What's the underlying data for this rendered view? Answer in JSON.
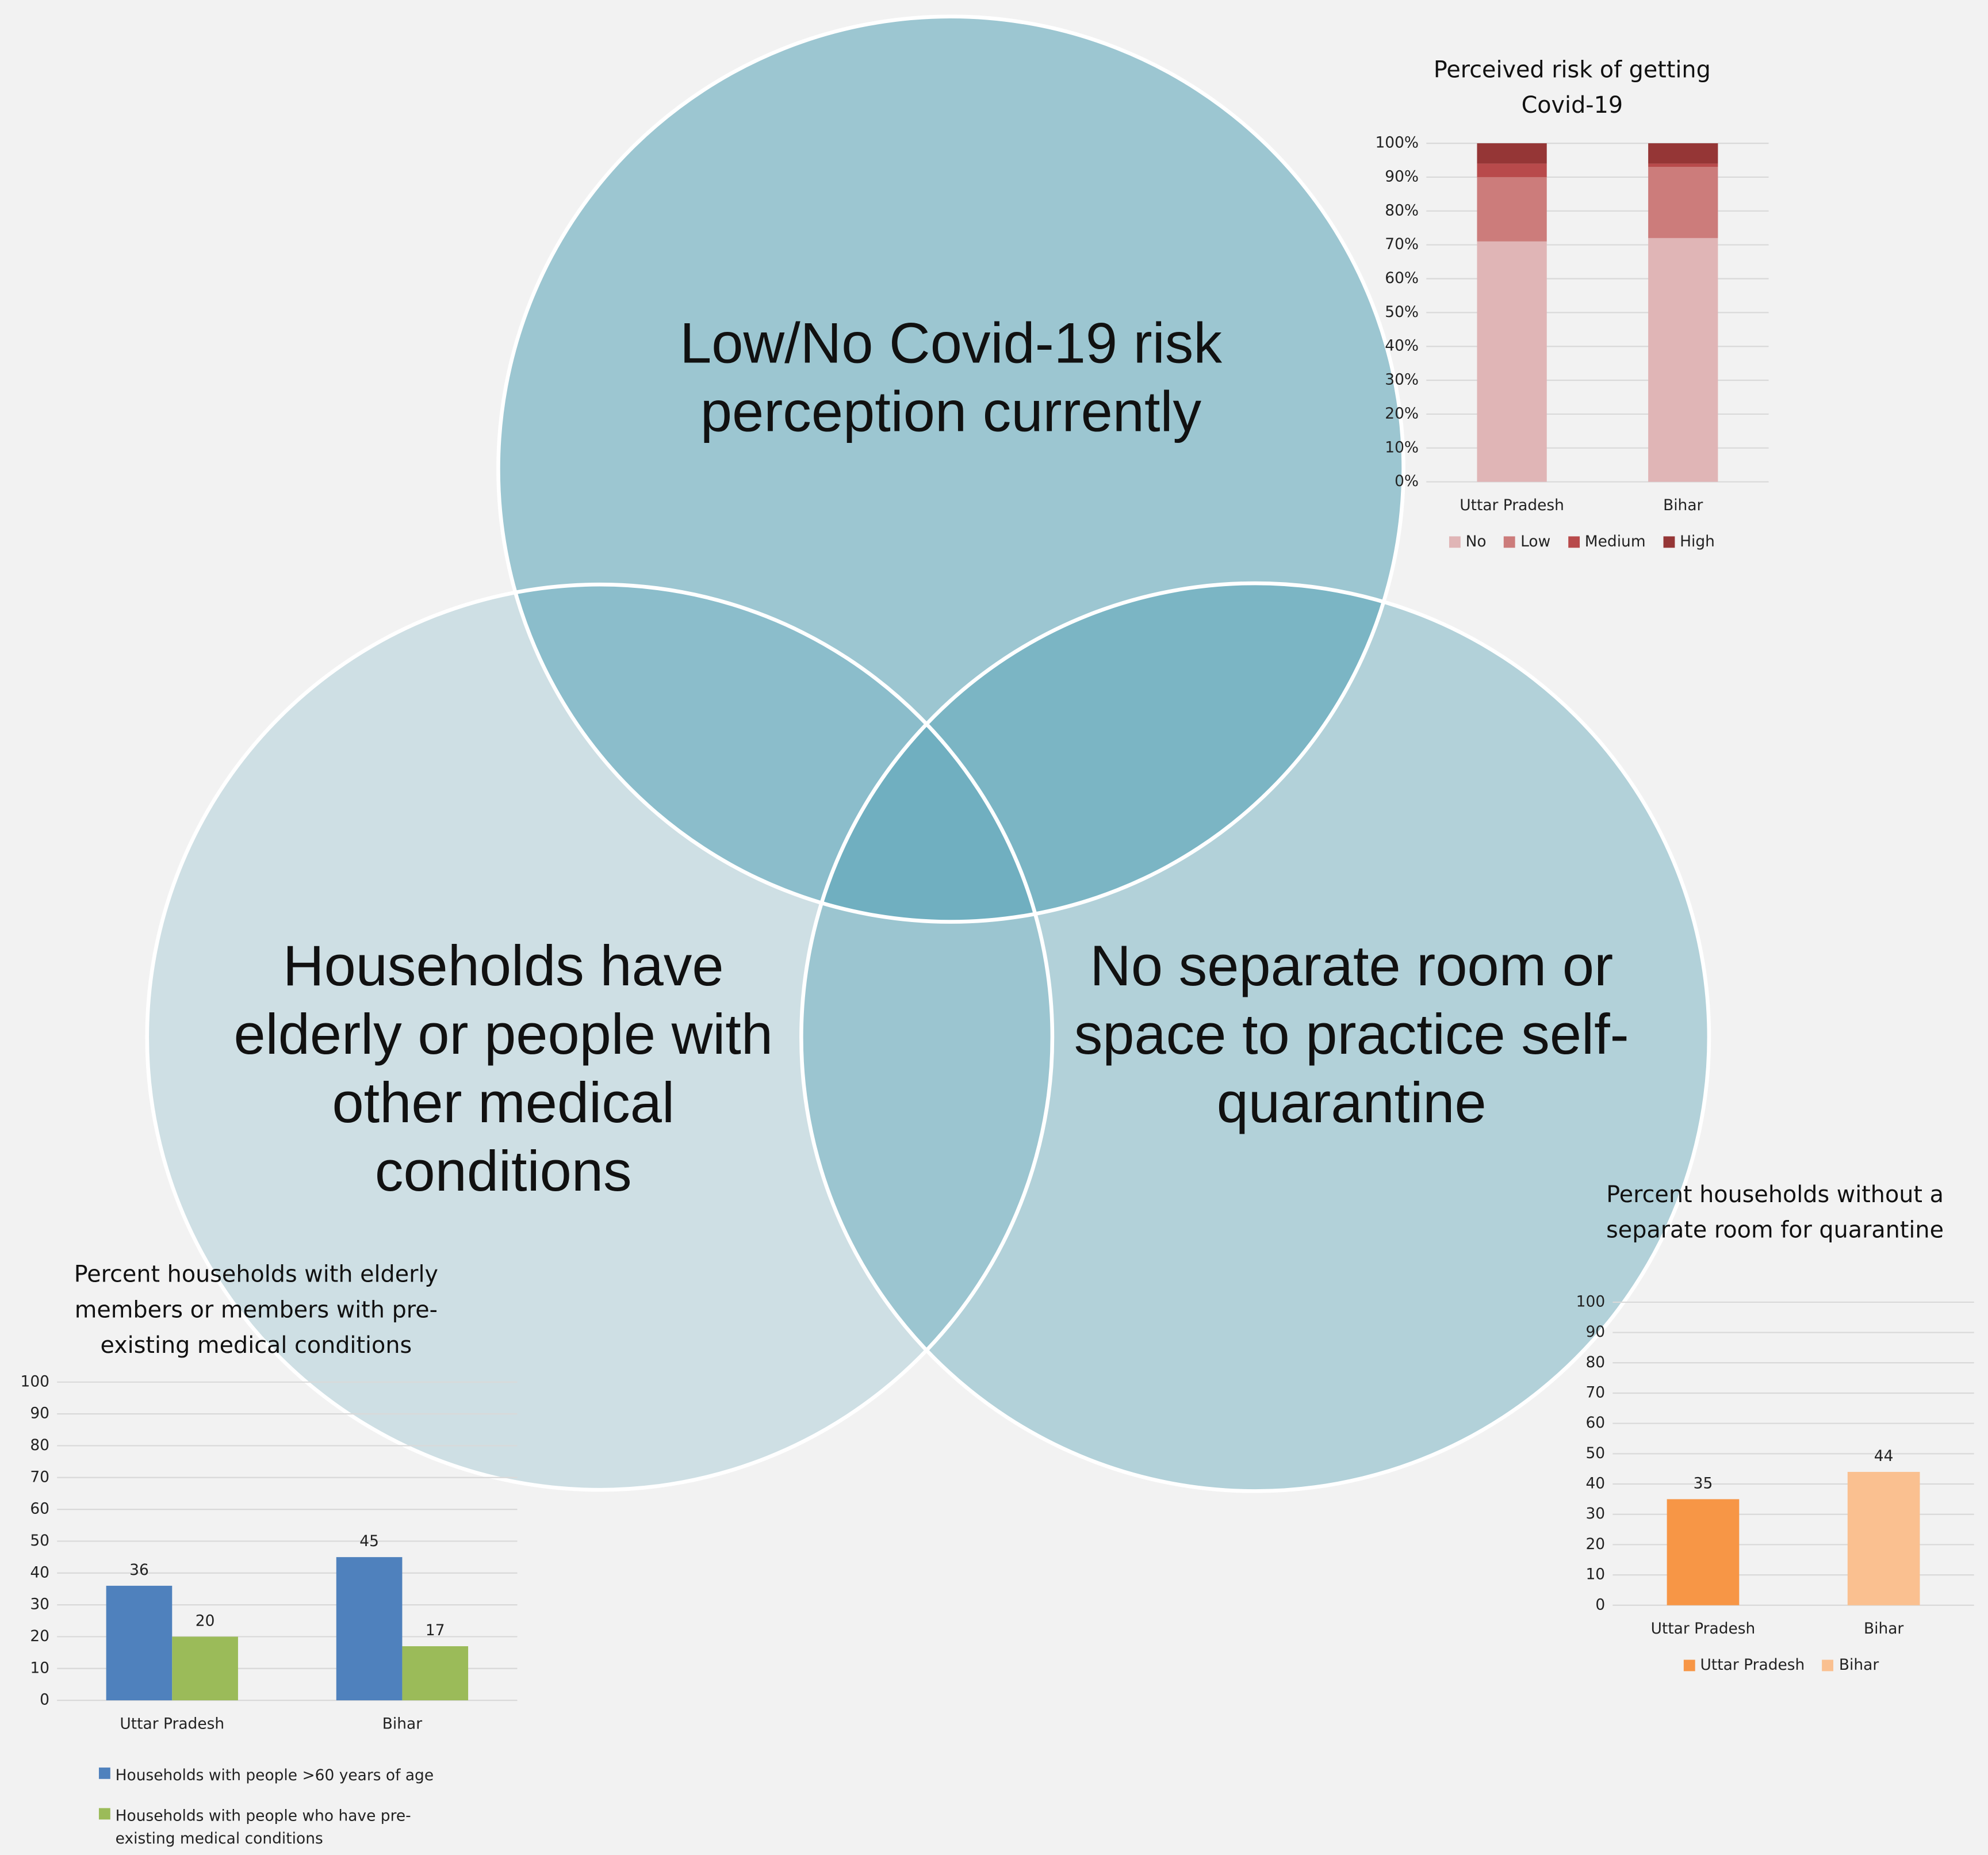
{
  "venn": {
    "labels": [
      "Low/No Covid-19 risk perception currently",
      "Households have elderly or people with other medical conditions",
      "No separate room or space to practice self-quarantine"
    ]
  },
  "chart_data": [
    {
      "type": "bar",
      "stacked": true,
      "title": "Perceived risk of getting Covid-19",
      "categories": [
        "Uttar Pradesh",
        "Bihar"
      ],
      "series": [
        {
          "name": "No",
          "color": "#e0b5b6",
          "values": [
            71,
            72
          ]
        },
        {
          "name": "Low",
          "color": "#cc7c7b",
          "values": [
            19,
            21
          ]
        },
        {
          "name": "Medium",
          "color": "#b84a4b",
          "values": [
            4,
            1
          ]
        },
        {
          "name": "High",
          "color": "#953636",
          "values": [
            6,
            6
          ]
        }
      ],
      "ylim": [
        0,
        100
      ],
      "yticks": [
        {
          "value": 0,
          "label": "0%"
        },
        {
          "value": 10,
          "label": "10%"
        },
        {
          "value": 20,
          "label": "20%"
        },
        {
          "value": 30,
          "label": "30%"
        },
        {
          "value": 40,
          "label": "40%"
        },
        {
          "value": 50,
          "label": "50%"
        },
        {
          "value": 60,
          "label": "60%"
        },
        {
          "value": 70,
          "label": "70%"
        },
        {
          "value": 80,
          "label": "80%"
        },
        {
          "value": 90,
          "label": "90%"
        },
        {
          "value": 100,
          "label": "100%"
        }
      ],
      "grid": true,
      "legend": "bottom"
    },
    {
      "type": "bar",
      "title": "Percent households with elderly members or members with pre-existing medical conditions",
      "categories": [
        "Uttar Pradesh",
        "Bihar"
      ],
      "series": [
        {
          "name": "Households with people >60 years of age",
          "color": "#4f81bd",
          "values": [
            36,
            45
          ]
        },
        {
          "name": "Households with people who have pre-existing medical conditions",
          "color": "#9bbb59",
          "values": [
            20,
            17
          ]
        }
      ],
      "ylim": [
        0,
        100
      ],
      "yticks": [
        0,
        10,
        20,
        30,
        40,
        50,
        60,
        70,
        80,
        90,
        100
      ],
      "grid": true,
      "legend": "bottom",
      "data_labels": true
    },
    {
      "type": "bar",
      "title": "Percent households without a separate room for quarantine",
      "categories": [
        "Uttar Pradesh",
        "Bihar"
      ],
      "values": [
        35,
        44
      ],
      "colors": [
        "#f79646",
        "#fac090"
      ],
      "ylim": [
        0,
        100
      ],
      "yticks": [
        0,
        10,
        20,
        30,
        40,
        50,
        60,
        70,
        80,
        90,
        100
      ],
      "grid": true,
      "legend": "bottom",
      "data_labels": true
    }
  ]
}
